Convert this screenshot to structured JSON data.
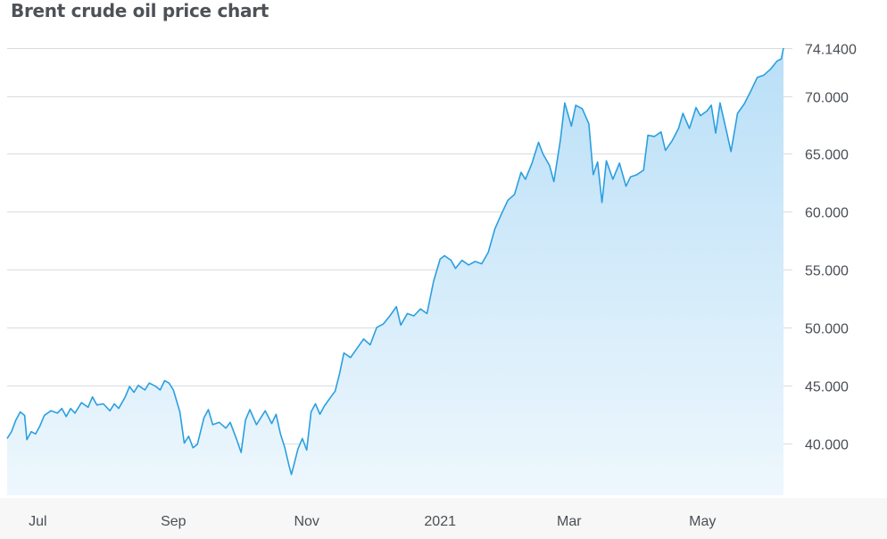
{
  "page": {
    "title": "Brent crude oil price chart"
  },
  "colors": {
    "line": "#2b9fe0",
    "area_top": "#b9dff7",
    "area_bottom": "#eef7fd",
    "grid": "#d9dcdf",
    "text": "#4a4f55"
  },
  "chart_data": {
    "type": "area",
    "title": "Brent crude oil price chart",
    "xlabel": "",
    "ylabel": "",
    "ylim": [
      35.5,
      74.9
    ],
    "y_ticks": [
      40,
      45,
      50,
      55,
      60,
      65,
      70
    ],
    "y_tick_labels": [
      "40.000",
      "45.000",
      "50.000",
      "55.000",
      "60.000",
      "65.000",
      "70.000"
    ],
    "last_value_label": "74.1400",
    "last_value": 74.14,
    "x_ticks": [
      {
        "date": "2020-07-08",
        "label": "Jul"
      },
      {
        "date": "2020-09-08",
        "label": "Sep"
      },
      {
        "date": "2020-11-08",
        "label": "Nov"
      },
      {
        "date": "2021-01-08",
        "label": "2021"
      },
      {
        "date": "2021-03-08",
        "label": "Mar"
      },
      {
        "date": "2021-05-08",
        "label": "May"
      }
    ],
    "grid": true,
    "series": [
      {
        "points": [
          [
            "2020-06-24",
            40.4
          ],
          [
            "2020-06-26",
            41.0
          ],
          [
            "2020-06-28",
            42.0
          ],
          [
            "2020-06-30",
            42.7
          ],
          [
            "2020-07-02",
            42.4
          ],
          [
            "2020-07-03",
            40.3
          ],
          [
            "2020-07-05",
            41.0
          ],
          [
            "2020-07-07",
            40.8
          ],
          [
            "2020-07-09",
            41.5
          ],
          [
            "2020-07-11",
            42.4
          ],
          [
            "2020-07-14",
            42.8
          ],
          [
            "2020-07-17",
            42.6
          ],
          [
            "2020-07-19",
            43.0
          ],
          [
            "2020-07-21",
            42.3
          ],
          [
            "2020-07-23",
            43.0
          ],
          [
            "2020-07-25",
            42.6
          ],
          [
            "2020-07-28",
            43.5
          ],
          [
            "2020-07-31",
            43.1
          ],
          [
            "2020-08-02",
            44.0
          ],
          [
            "2020-08-04",
            43.3
          ],
          [
            "2020-08-07",
            43.4
          ],
          [
            "2020-08-10",
            42.8
          ],
          [
            "2020-08-12",
            43.4
          ],
          [
            "2020-08-14",
            43.0
          ],
          [
            "2020-08-17",
            44.0
          ],
          [
            "2020-08-19",
            44.9
          ],
          [
            "2020-08-21",
            44.4
          ],
          [
            "2020-08-23",
            45.0
          ],
          [
            "2020-08-26",
            44.6
          ],
          [
            "2020-08-28",
            45.2
          ],
          [
            "2020-08-31",
            44.9
          ],
          [
            "2020-09-02",
            44.6
          ],
          [
            "2020-09-04",
            45.4
          ],
          [
            "2020-09-06",
            45.2
          ],
          [
            "2020-09-08",
            44.6
          ],
          [
            "2020-09-11",
            42.7
          ],
          [
            "2020-09-13",
            40.0
          ],
          [
            "2020-09-15",
            40.6
          ],
          [
            "2020-09-17",
            39.6
          ],
          [
            "2020-09-19",
            39.9
          ],
          [
            "2020-09-22",
            42.2
          ],
          [
            "2020-09-24",
            42.9
          ],
          [
            "2020-09-26",
            41.6
          ],
          [
            "2020-09-29",
            41.8
          ],
          [
            "2020-10-02",
            41.3
          ],
          [
            "2020-10-04",
            41.8
          ],
          [
            "2020-10-07",
            40.3
          ],
          [
            "2020-10-09",
            39.2
          ],
          [
            "2020-10-11",
            42.0
          ],
          [
            "2020-10-13",
            42.9
          ],
          [
            "2020-10-16",
            41.6
          ],
          [
            "2020-10-18",
            42.2
          ],
          [
            "2020-10-20",
            42.8
          ],
          [
            "2020-10-23",
            41.7
          ],
          [
            "2020-10-25",
            42.5
          ],
          [
            "2020-10-27",
            40.8
          ],
          [
            "2020-10-29",
            39.6
          ],
          [
            "2020-10-31",
            38.0
          ],
          [
            "2020-11-01",
            37.3
          ],
          [
            "2020-11-04",
            39.5
          ],
          [
            "2020-11-06",
            40.4
          ],
          [
            "2020-11-08",
            39.4
          ],
          [
            "2020-11-10",
            42.7
          ],
          [
            "2020-11-12",
            43.4
          ],
          [
            "2020-11-14",
            42.5
          ],
          [
            "2020-11-16",
            43.2
          ],
          [
            "2020-11-19",
            44.0
          ],
          [
            "2020-11-21",
            44.5
          ],
          [
            "2020-11-23",
            46.0
          ],
          [
            "2020-11-25",
            47.8
          ],
          [
            "2020-11-28",
            47.4
          ],
          [
            "2020-12-01",
            48.2
          ],
          [
            "2020-12-04",
            49.0
          ],
          [
            "2020-12-07",
            48.5
          ],
          [
            "2020-12-10",
            50.0
          ],
          [
            "2020-12-13",
            50.3
          ],
          [
            "2020-12-16",
            51.0
          ],
          [
            "2020-12-19",
            51.8
          ],
          [
            "2020-12-21",
            50.2
          ],
          [
            "2020-12-24",
            51.2
          ],
          [
            "2020-12-27",
            51.0
          ],
          [
            "2020-12-30",
            51.6
          ],
          [
            "2021-01-02",
            51.2
          ],
          [
            "2021-01-05",
            54.0
          ],
          [
            "2021-01-08",
            55.9
          ],
          [
            "2021-01-10",
            56.2
          ],
          [
            "2021-01-13",
            55.8
          ],
          [
            "2021-01-15",
            55.1
          ],
          [
            "2021-01-18",
            55.8
          ],
          [
            "2021-01-21",
            55.4
          ],
          [
            "2021-01-24",
            55.7
          ],
          [
            "2021-01-27",
            55.5
          ],
          [
            "2021-01-30",
            56.5
          ],
          [
            "2021-02-02",
            58.5
          ],
          [
            "2021-02-05",
            59.8
          ],
          [
            "2021-02-08",
            61.0
          ],
          [
            "2021-02-11",
            61.5
          ],
          [
            "2021-02-14",
            63.4
          ],
          [
            "2021-02-16",
            62.8
          ],
          [
            "2021-02-19",
            64.2
          ],
          [
            "2021-02-22",
            66.0
          ],
          [
            "2021-02-24",
            65.0
          ],
          [
            "2021-02-27",
            64.0
          ],
          [
            "2021-03-01",
            62.6
          ],
          [
            "2021-03-04",
            66.2
          ],
          [
            "2021-03-06",
            69.4
          ],
          [
            "2021-03-09",
            67.4
          ],
          [
            "2021-03-11",
            69.2
          ],
          [
            "2021-03-14",
            68.9
          ],
          [
            "2021-03-17",
            67.6
          ],
          [
            "2021-03-19",
            63.2
          ],
          [
            "2021-03-21",
            64.3
          ],
          [
            "2021-03-23",
            60.8
          ],
          [
            "2021-03-25",
            64.4
          ],
          [
            "2021-03-28",
            62.8
          ],
          [
            "2021-03-31",
            64.2
          ],
          [
            "2021-04-03",
            62.2
          ],
          [
            "2021-04-05",
            63.0
          ],
          [
            "2021-04-08",
            63.2
          ],
          [
            "2021-04-11",
            63.6
          ],
          [
            "2021-04-13",
            66.6
          ],
          [
            "2021-04-16",
            66.5
          ],
          [
            "2021-04-19",
            66.9
          ],
          [
            "2021-04-21",
            65.3
          ],
          [
            "2021-04-24",
            66.1
          ],
          [
            "2021-04-27",
            67.2
          ],
          [
            "2021-04-29",
            68.5
          ],
          [
            "2021-05-02",
            67.2
          ],
          [
            "2021-05-05",
            69.0
          ],
          [
            "2021-05-07",
            68.3
          ],
          [
            "2021-05-10",
            68.7
          ],
          [
            "2021-05-12",
            69.2
          ],
          [
            "2021-05-14",
            66.8
          ],
          [
            "2021-05-16",
            69.4
          ],
          [
            "2021-05-19",
            66.9
          ],
          [
            "2021-05-21",
            65.2
          ],
          [
            "2021-05-24",
            68.5
          ],
          [
            "2021-05-27",
            69.3
          ],
          [
            "2021-05-30",
            70.4
          ],
          [
            "2021-06-02",
            71.6
          ],
          [
            "2021-06-05",
            71.8
          ],
          [
            "2021-06-08",
            72.3
          ],
          [
            "2021-06-11",
            73.0
          ],
          [
            "2021-06-13",
            73.2
          ],
          [
            "2021-06-14",
            74.14
          ]
        ]
      }
    ]
  }
}
